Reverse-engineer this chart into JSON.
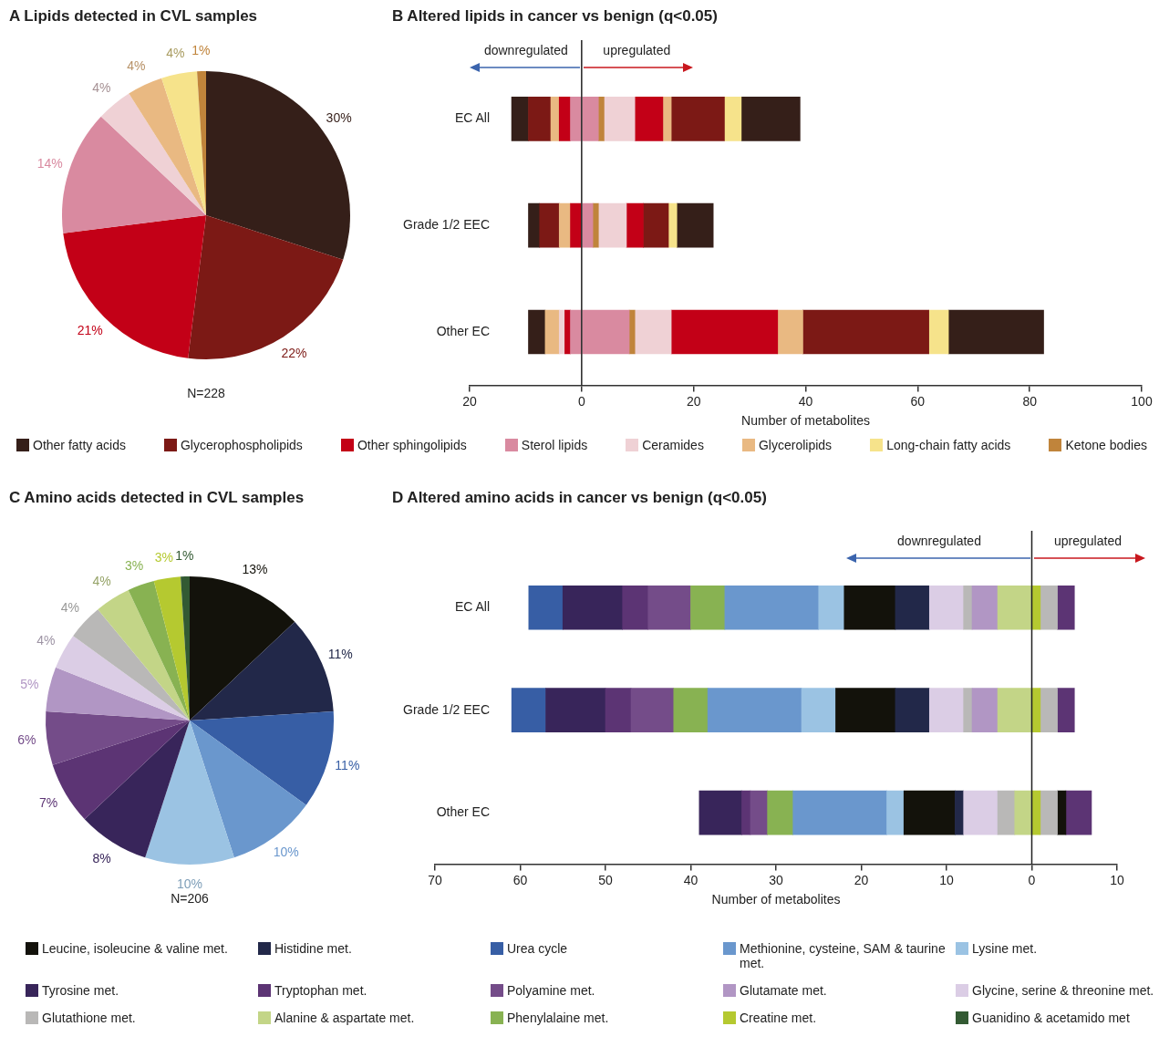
{
  "chart_data": [
    {
      "type": "pie",
      "title": "A Lipids detected in CVL samples",
      "categories": [
        "Other fatty acids",
        "Glycerophospholipids",
        "Other sphingolipids",
        "Sterol lipids",
        "Ceramides",
        "Glycerolipids",
        "Long-chain fatty acids",
        "Ketone bodies"
      ],
      "values": [
        30,
        22,
        21,
        14,
        4,
        4,
        4,
        1
      ],
      "colors": [
        "#351f19",
        "#7c1915",
        "#c30017",
        "#d98aa0",
        "#efd1d5",
        "#e9b982",
        "#f6e38b",
        "#c0843b"
      ],
      "value_labels": [
        "30%",
        "22%",
        "21%",
        "14%",
        "4%",
        "4%",
        "4%",
        "1%"
      ],
      "legend": "bottom",
      "annotations": [
        "N=228"
      ]
    },
    {
      "type": "bar",
      "title": "B Altered lipids in cancer vs benign (q<0.05)",
      "orientation": "horizontal",
      "stacked": true,
      "categories": [
        "EC All",
        "Grade 1/2 EEC",
        "Other EC"
      ],
      "series": [
        {
          "color": "#d98aa0",
          "values": [
            -2,
            null,
            -2
          ]
        },
        {
          "color": "#c30017",
          "values": [
            -2,
            -2,
            -1
          ]
        },
        {
          "color": "#efd1d5",
          "values": [
            null,
            null,
            -1
          ]
        },
        {
          "color": "#e9b982",
          "values": [
            -1.5,
            -2,
            -2.5
          ]
        },
        {
          "color": "#7c1915",
          "values": [
            -4,
            -3.5,
            null
          ]
        },
        {
          "color": "#351f19",
          "values": [
            -3,
            -2,
            -3
          ]
        },
        {
          "color": "#d98aa0",
          "values": [
            3,
            2,
            8.5
          ]
        },
        {
          "color": "#c0843b",
          "values": [
            1,
            1,
            1
          ]
        },
        {
          "color": "#efd1d5",
          "values": [
            5.5,
            5,
            6.5
          ]
        },
        {
          "color": "#c30017",
          "values": [
            5,
            3,
            19
          ]
        },
        {
          "color": "#e9b982",
          "values": [
            1.5,
            null,
            4.5
          ]
        },
        {
          "color": "#7c1915",
          "values": [
            9.5,
            4.5,
            22.5
          ]
        },
        {
          "color": "#f6e38b",
          "values": [
            3,
            1.5,
            3.5
          ]
        },
        {
          "color": "#351f19",
          "values": [
            10.5,
            6.5,
            17
          ]
        }
      ],
      "xlim": [
        -20,
        100
      ],
      "xticks": [
        {
          "value": -20,
          "label": "20"
        },
        0,
        20,
        40,
        60,
        80,
        100
      ],
      "xlabel": "Number of metabolites",
      "annotations": [
        "downregulated",
        "upregulated"
      ],
      "ref_lines": [
        {
          "axis": "x",
          "value": 0
        }
      ]
    },
    {
      "type": "pie",
      "title": "C Amino acids detected in CVL samples",
      "categories": [
        "Leucine, isoleucine & valine met.",
        "Histidine met.",
        "Urea cycle",
        "Methionine, cysteine, SAM & taurine met.",
        "Lysine met.",
        "Tyrosine met.",
        "Tryptophan met.",
        "Polyamine met.",
        "Glutamate met.",
        "Glycine, serine & threonine met.",
        "Glutathione met.",
        "Alanine & aspartate met.",
        "Phenylalaine met.",
        "Creatine met.",
        "Guanidino & acetamido met"
      ],
      "values": [
        13,
        11,
        11,
        10,
        10,
        8,
        7,
        6,
        5,
        4,
        4,
        4,
        3,
        3,
        1
      ],
      "colors": [
        "#13120b",
        "#222849",
        "#375ea5",
        "#6a97cd",
        "#9bc3e3",
        "#38255a",
        "#5c3474",
        "#744c89",
        "#b196c4",
        "#dbcde5",
        "#b9b8b7",
        "#c3d587",
        "#88b252",
        "#b5c930",
        "#335a33"
      ],
      "value_labels": [
        "13%",
        "11%",
        "11%",
        "10%",
        "10%",
        "8%",
        "7%",
        "6%",
        "5%",
        "4%",
        "4%",
        "4%",
        "3%",
        "3%",
        "1%"
      ],
      "legend": "bottom",
      "annotations": [
        "N=206"
      ]
    },
    {
      "type": "bar",
      "title": "D Altered amino acids in cancer vs benign (q<0.05)",
      "orientation": "horizontal",
      "stacked": true,
      "categories": [
        "EC All",
        "Grade 1/2 EEC",
        "Other EC"
      ],
      "series": [
        {
          "color": "#c3d587",
          "values": [
            -4,
            -4,
            -2
          ]
        },
        {
          "color": "#b196c4",
          "values": [
            -3,
            -3,
            null
          ]
        },
        {
          "color": "#b9b8b7",
          "values": [
            -1,
            -1,
            -2
          ]
        },
        {
          "color": "#dbcde5",
          "values": [
            -4,
            -4,
            -4
          ]
        },
        {
          "color": "#222849",
          "values": [
            -4,
            -4,
            -1
          ]
        },
        {
          "color": "#13120b",
          "values": [
            -6,
            -7,
            -6
          ]
        },
        {
          "color": "#9bc3e3",
          "values": [
            -3,
            -4,
            -2
          ]
        },
        {
          "color": "#6a97cd",
          "values": [
            -11,
            -11,
            -11
          ]
        },
        {
          "color": "#88b252",
          "values": [
            -4,
            -4,
            -3
          ]
        },
        {
          "color": "#744c89",
          "values": [
            -5,
            -5,
            -2
          ]
        },
        {
          "color": "#5c3474",
          "values": [
            -3,
            -3,
            -1
          ]
        },
        {
          "color": "#38255a",
          "values": [
            -7,
            -7,
            -5
          ]
        },
        {
          "color": "#375ea5",
          "values": [
            -4,
            -4,
            null
          ]
        },
        {
          "color": "#b5c930",
          "values": [
            1,
            1,
            1
          ]
        },
        {
          "color": "#b9b8b7",
          "values": [
            2,
            2,
            2
          ]
        },
        {
          "color": "#13120b",
          "values": [
            null,
            null,
            1
          ]
        },
        {
          "color": "#5c3474",
          "values": [
            2,
            2,
            3
          ]
        }
      ],
      "xlim": [
        -70,
        10
      ],
      "xticks": [
        {
          "value": -70,
          "label": "70"
        },
        {
          "value": -60,
          "label": "60"
        },
        {
          "value": -50,
          "label": "50"
        },
        {
          "value": -40,
          "label": "40"
        },
        {
          "value": -30,
          "label": "30"
        },
        {
          "value": -20,
          "label": "20"
        },
        {
          "value": -10,
          "label": "10"
        },
        0,
        10
      ],
      "xlabel": "Number of metabolites",
      "annotations": [
        "downregulated",
        "upregulated"
      ],
      "ref_lines": [
        {
          "axis": "x",
          "value": 0
        }
      ]
    }
  ]
}
